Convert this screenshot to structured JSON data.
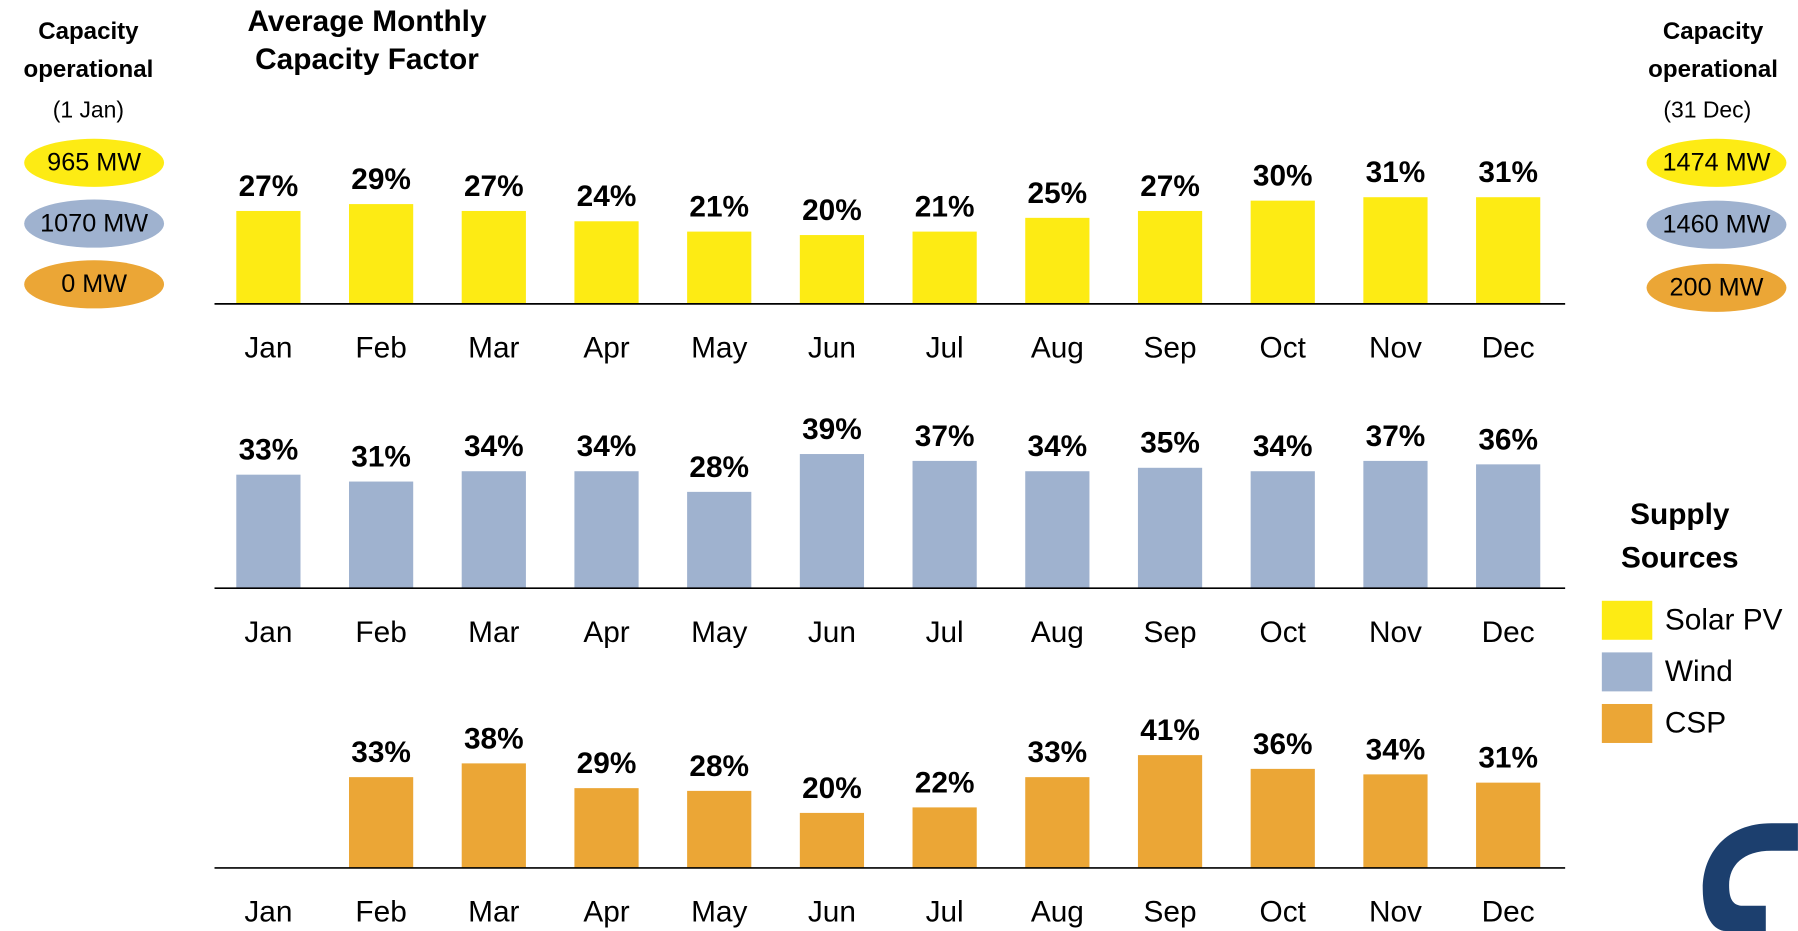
{
  "chart_data": [
    {
      "type": "bar",
      "categories": [
        "Jan",
        "Feb",
        "Mar",
        "Apr",
        "May",
        "Jun",
        "Jul",
        "Aug",
        "Sep",
        "Oct",
        "Nov",
        "Dec"
      ],
      "series": [
        {
          "name": "Solar PV",
          "color": "#fdeb14",
          "values": [
            27,
            29,
            27,
            24,
            21,
            20,
            21,
            25,
            27,
            30,
            31,
            31
          ],
          "value_labels": [
            "27%",
            "29%",
            "27%",
            "24%",
            "21%",
            "20%",
            "21%",
            "25%",
            "27%",
            "30%",
            "31%",
            "31%"
          ]
        }
      ],
      "ylim": [
        0,
        40
      ]
    },
    {
      "type": "bar",
      "categories": [
        "Jan",
        "Feb",
        "Mar",
        "Apr",
        "May",
        "Jun",
        "Jul",
        "Aug",
        "Sep",
        "Oct",
        "Nov",
        "Dec"
      ],
      "series": [
        {
          "name": "Wind",
          "color": "#9fb2cf",
          "values": [
            33,
            31,
            34,
            34,
            28,
            39,
            37,
            34,
            35,
            34,
            37,
            36
          ],
          "value_labels": [
            "33%",
            "31%",
            "34%",
            "34%",
            "28%",
            "39%",
            "37%",
            "34%",
            "35%",
            "34%",
            "37%",
            "36%"
          ]
        }
      ],
      "ylim": [
        0,
        40
      ]
    },
    {
      "type": "bar",
      "categories": [
        "Jan",
        "Feb",
        "Mar",
        "Apr",
        "May",
        "Jun",
        "Jul",
        "Aug",
        "Sep",
        "Oct",
        "Nov",
        "Dec"
      ],
      "series": [
        {
          "name": "CSP",
          "color": "#eba636",
          "values": [
            null,
            33,
            38,
            29,
            28,
            20,
            22,
            33,
            41,
            36,
            34,
            31
          ],
          "value_labels": [
            null,
            "33%",
            "38%",
            "29%",
            "28%",
            "20%",
            "22%",
            "33%",
            "41%",
            "36%",
            "34%",
            "31%"
          ]
        }
      ],
      "ylim": [
        0,
        50
      ]
    }
  ],
  "title": "Average Monthly Capacity Factor",
  "legend_title": "Supply Sources",
  "capacity_start": {
    "title": "Capacity operational",
    "date": "(1 Jan)",
    "labels": [
      "965 MW",
      "1070 MW",
      "0 MW"
    ]
  },
  "capacity_end": {
    "title": "Capacity operational",
    "date": "(31 Dec)",
    "labels": [
      "1474 MW",
      "1460 MW",
      "200 MW"
    ]
  }
}
